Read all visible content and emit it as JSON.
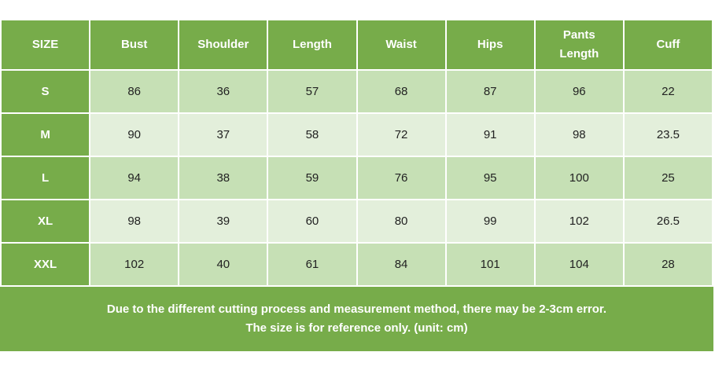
{
  "table": {
    "header": [
      "SIZE",
      "Bust",
      "Shoulder",
      "Length",
      "Waist",
      "Hips",
      "Pants Length",
      "Cuff"
    ],
    "rows": [
      [
        "S",
        86,
        36,
        57,
        68,
        87,
        96,
        22
      ],
      [
        "M",
        90,
        37,
        58,
        72,
        91,
        98,
        23.5
      ],
      [
        "L",
        94,
        38,
        59,
        76,
        95,
        100,
        25
      ],
      [
        "XL",
        98,
        39,
        60,
        80,
        99,
        102,
        26.5
      ],
      [
        "XXL",
        102,
        40,
        61,
        84,
        101,
        104,
        28
      ]
    ]
  },
  "notes": [
    "Due to the different cutting process and measurement method, there may be 2-3cm error.",
    "The size is for reference only. (unit: cm)"
  ]
}
